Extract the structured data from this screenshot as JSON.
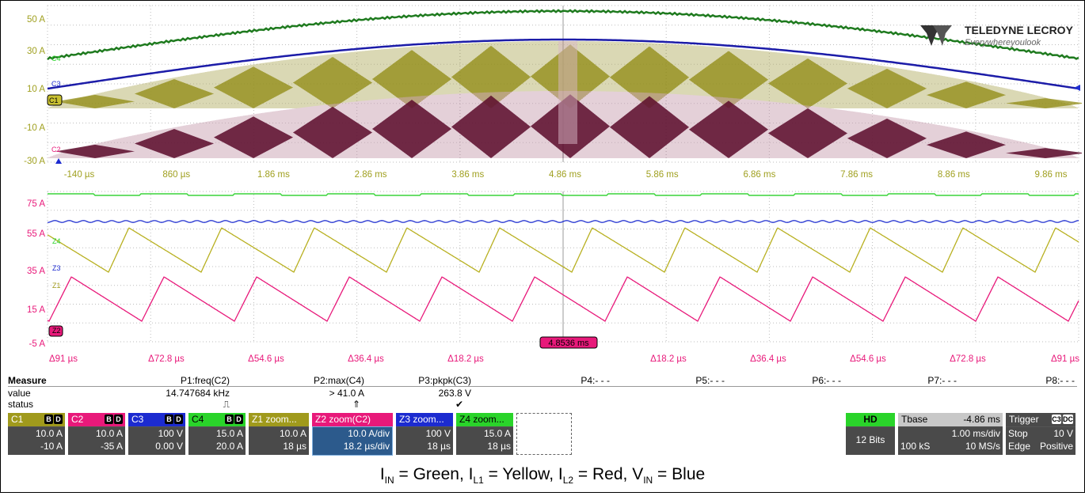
{
  "upper_grid": {
    "y_labels": [
      "50 A",
      "30 A",
      "10 A",
      "-10 A",
      "-30 A"
    ],
    "x_labels": [
      "-140 µs",
      "860 µs",
      "1.86 ms",
      "2.86 ms",
      "3.86 ms",
      "4.86 ms",
      "5.86 ms",
      "6.86 ms",
      "7.86 ms",
      "8.86 ms",
      "9.86 ms"
    ],
    "ch_markers": [
      "C4",
      "C3",
      "C1",
      "C2"
    ]
  },
  "lower_grid": {
    "y_labels": [
      "75 A",
      "55 A",
      "35 A",
      "15 A",
      "-5 A"
    ],
    "x_labels": [
      "Δ91 µs",
      "Δ72.8 µs",
      "Δ54.6 µs",
      "Δ36.4 µs",
      "Δ18.2 µs",
      "Δ18.2 µs",
      "Δ36.4 µs",
      "Δ54.6 µs",
      "Δ72.8 µs",
      "Δ91 µs"
    ],
    "ch_markers": [
      "Z4",
      "Z3",
      "Z1",
      "Z2"
    ],
    "center_time": "4.8536 ms"
  },
  "logo": {
    "brand": "TELEDYNE LECROY",
    "tagline": "Everywhereyoulook"
  },
  "measure": {
    "title": "Measure",
    "row_labels": [
      "value",
      "status"
    ],
    "params": [
      {
        "name": "P1:freq(C2)",
        "value": "14.747684 kHz",
        "status": "⎍"
      },
      {
        "name": "P2:max(C4)",
        "value": "> 41.0 A",
        "status": "⇑"
      },
      {
        "name": "P3:pkpk(C3)",
        "value": "263.8 V",
        "status": "✔"
      },
      {
        "name": "P4:- - -",
        "value": "",
        "status": ""
      },
      {
        "name": "P5:- - -",
        "value": "",
        "status": ""
      },
      {
        "name": "P6:- - -",
        "value": "",
        "status": ""
      },
      {
        "name": "P7:- - -",
        "value": "",
        "status": ""
      },
      {
        "name": "P8:- - -",
        "value": "",
        "status": ""
      }
    ]
  },
  "channels": [
    {
      "label": "C1",
      "badges": [
        "B",
        "D"
      ],
      "line1": "10.0 A",
      "line2": "-10 A",
      "color": "#a09a1c"
    },
    {
      "label": "C2",
      "badges": [
        "B",
        "D"
      ],
      "line1": "10.0 A",
      "line2": "-35 A",
      "color": "#e8197a"
    },
    {
      "label": "C3",
      "badges": [
        "B",
        "D"
      ],
      "line1": "100 V",
      "line2": "0.00 V",
      "color": "#1c2bd0"
    },
    {
      "label": "C4",
      "badges": [
        "B",
        "D"
      ],
      "line1": "15.0 A",
      "line2": "20.0 A",
      "color": "#2ad42a"
    },
    {
      "label": "Z1 zoom...",
      "badges": [],
      "line1": "10.0 A",
      "line2": "18 µs",
      "color": "#a09a1c"
    },
    {
      "label": "Z2    zoom(C2)",
      "badges": [],
      "line1": "10.0 A/div",
      "line2": "18.2 µs/div",
      "color": "#e8197a"
    },
    {
      "label": "Z3 zoom...",
      "badges": [],
      "line1": "100 V",
      "line2": "18 µs",
      "color": "#1c2bd0"
    },
    {
      "label": "Z4 zoom...",
      "badges": [],
      "line1": "15.0 A",
      "line2": "18 µs",
      "color": "#2ad42a"
    }
  ],
  "hd": {
    "label": "HD",
    "bits": "12 Bits"
  },
  "timebase": {
    "label": "Tbase",
    "offset": "-4.86 ms",
    "div": "1.00 ms/div",
    "samples": "100 kS",
    "rate": "10 MS/s"
  },
  "trigger": {
    "label": "Trigger",
    "badges": [
      "C3",
      "DC"
    ],
    "mode": "Stop",
    "level": "10 V",
    "type": "Edge",
    "slope": "Positive"
  },
  "caption": {
    "items": [
      {
        "sym": "I",
        "sub": "IN",
        "name": "Green"
      },
      {
        "sym": "I",
        "sub": "L1",
        "name": "Yellow"
      },
      {
        "sym": "I",
        "sub": "L2",
        "name": "Red"
      },
      {
        "sym": "V",
        "sub": "IN",
        "name": "Blue"
      }
    ]
  },
  "colors": {
    "c1": "#8f8a10",
    "c2": "#e8197a",
    "c3": "#1c1ca8",
    "c4": "#1e7a1e",
    "z4": "#3ad43a",
    "z1": "#b8b020",
    "z3": "#2030d0",
    "grid": "#bdbdbd"
  }
}
